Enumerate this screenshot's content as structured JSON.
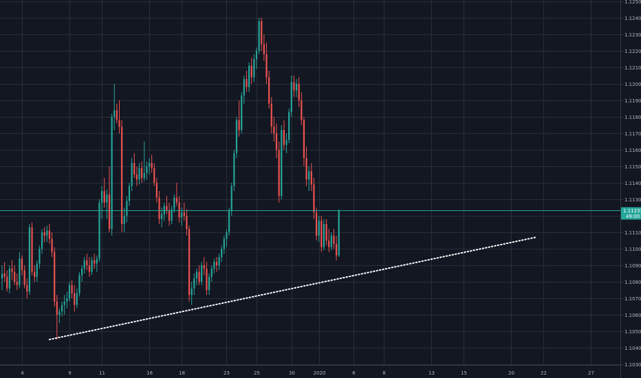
{
  "chart_data": {
    "type": "candlestick",
    "title": "",
    "xlabel": "",
    "ylabel": "",
    "ylim": [
      1.103,
      1.125
    ],
    "y_ticks": [
      "1.10300",
      "1.10400",
      "1.10500",
      "1.10600",
      "1.10700",
      "1.10800",
      "1.10900",
      "1.11000",
      "1.11100",
      "1.11200",
      "1.11300",
      "1.11400",
      "1.11500",
      "1.11600",
      "1.11700",
      "1.11800",
      "1.11900",
      "1.12000",
      "1.12100",
      "1.12200",
      "1.12300",
      "1.12400",
      "1.12500"
    ],
    "x_ticks": [
      {
        "label": "4",
        "bar": 8
      },
      {
        "label": "9",
        "bar": 27
      },
      {
        "label": "11",
        "bar": 40
      },
      {
        "label": "16",
        "bar": 59
      },
      {
        "label": "18",
        "bar": 72
      },
      {
        "label": "23",
        "bar": 90
      },
      {
        "label": "25",
        "bar": 102
      },
      {
        "label": "30",
        "bar": 116
      },
      {
        "label": "2020",
        "bar": 127
      },
      {
        "label": "6",
        "bar": 141
      },
      {
        "label": "8",
        "bar": 153
      },
      {
        "label": "13",
        "bar": 172
      },
      {
        "label": "15",
        "bar": 185
      },
      {
        "label": "20",
        "bar": 204
      },
      {
        "label": "22",
        "bar": 217
      },
      {
        "label": "27",
        "bar": 236
      }
    ],
    "x_range_bars": [
      0,
      247
    ],
    "grid": true,
    "current_price": {
      "value": 1.11233,
      "label": "1.11233",
      "timer": "49:00",
      "color": "#26a69a"
    },
    "trendline": {
      "style": "dotted",
      "color": "#ffffff",
      "start": {
        "bar": 19,
        "price": 1.1045
      },
      "end": {
        "bar": 214,
        "price": 1.1107
      }
    },
    "colors": {
      "up": "#26a69a",
      "down": "#ef5350",
      "background": "#131722",
      "grid": "#2a2e39"
    },
    "candles": [
      [
        1.1082,
        1.109,
        1.1075,
        1.1085
      ],
      [
        1.1085,
        1.1092,
        1.108,
        1.1083
      ],
      [
        1.1083,
        1.1087,
        1.1074,
        1.1076
      ],
      [
        1.1076,
        1.109,
        1.1073,
        1.1088
      ],
      [
        1.1088,
        1.1093,
        1.1081,
        1.1086
      ],
      [
        1.1086,
        1.109,
        1.1078,
        1.108
      ],
      [
        1.108,
        1.1085,
        1.1075,
        1.1078
      ],
      [
        1.1078,
        1.1098,
        1.1076,
        1.1094
      ],
      [
        1.1094,
        1.1096,
        1.1084,
        1.1087
      ],
      [
        1.1087,
        1.109,
        1.1076,
        1.1078
      ],
      [
        1.1078,
        1.1082,
        1.107,
        1.1074
      ],
      [
        1.1074,
        1.1115,
        1.1072,
        1.1113
      ],
      [
        1.1113,
        1.1116,
        1.1084,
        1.1086
      ],
      [
        1.1086,
        1.109,
        1.108,
        1.1083
      ],
      [
        1.1083,
        1.1093,
        1.108,
        1.1091
      ],
      [
        1.1091,
        1.1102,
        1.1088,
        1.11
      ],
      [
        1.11,
        1.1112,
        1.1097,
        1.111
      ],
      [
        1.111,
        1.1113,
        1.1104,
        1.1108
      ],
      [
        1.1108,
        1.1114,
        1.1104,
        1.1111
      ],
      [
        1.1111,
        1.1115,
        1.1103,
        1.1106
      ],
      [
        1.1106,
        1.111,
        1.1095,
        1.1098
      ],
      [
        1.1098,
        1.1101,
        1.1065,
        1.1068
      ],
      [
        1.1068,
        1.1072,
        1.1045,
        1.106
      ],
      [
        1.106,
        1.1064,
        1.1055,
        1.1062
      ],
      [
        1.1062,
        1.1068,
        1.1059,
        1.1066
      ],
      [
        1.1066,
        1.1072,
        1.106,
        1.1068
      ],
      [
        1.1068,
        1.1074,
        1.1064,
        1.107
      ],
      [
        1.107,
        1.108,
        1.1068,
        1.1078
      ],
      [
        1.1078,
        1.1081,
        1.107,
        1.1073
      ],
      [
        1.1073,
        1.1078,
        1.1062,
        1.1066
      ],
      [
        1.1066,
        1.1076,
        1.1064,
        1.1073
      ],
      [
        1.1073,
        1.1086,
        1.1071,
        1.1084
      ],
      [
        1.1084,
        1.109,
        1.108,
        1.1088
      ],
      [
        1.1088,
        1.1095,
        1.1085,
        1.1093
      ],
      [
        1.1093,
        1.1097,
        1.1087,
        1.109
      ],
      [
        1.109,
        1.1095,
        1.1083,
        1.1086
      ],
      [
        1.1086,
        1.1095,
        1.1084,
        1.1093
      ],
      [
        1.1093,
        1.1097,
        1.1088,
        1.1091
      ],
      [
        1.1091,
        1.1096,
        1.1086,
        1.1094
      ],
      [
        1.1094,
        1.113,
        1.1092,
        1.1128
      ],
      [
        1.1128,
        1.1138,
        1.1118,
        1.1135
      ],
      [
        1.1135,
        1.1143,
        1.1125,
        1.1128
      ],
      [
        1.1128,
        1.1136,
        1.1118,
        1.1133
      ],
      [
        1.1133,
        1.115,
        1.111,
        1.1112
      ],
      [
        1.1112,
        1.1182,
        1.1108,
        1.118
      ],
      [
        1.118,
        1.12,
        1.1172,
        1.1184
      ],
      [
        1.1184,
        1.1188,
        1.1176,
        1.1178
      ],
      [
        1.1178,
        1.119,
        1.117,
        1.1174
      ],
      [
        1.1174,
        1.1178,
        1.111,
        1.1115
      ],
      [
        1.1115,
        1.1125,
        1.111,
        1.112
      ],
      [
        1.112,
        1.1132,
        1.1116,
        1.1129
      ],
      [
        1.1129,
        1.114,
        1.1126,
        1.1138
      ],
      [
        1.1138,
        1.1155,
        1.1135,
        1.1152
      ],
      [
        1.1152,
        1.1158,
        1.1143,
        1.1145
      ],
      [
        1.1145,
        1.115,
        1.1138,
        1.1142
      ],
      [
        1.1142,
        1.1152,
        1.1139,
        1.1149
      ],
      [
        1.1149,
        1.1153,
        1.114,
        1.1143
      ],
      [
        1.1143,
        1.1165,
        1.1141,
        1.1146
      ],
      [
        1.1146,
        1.1153,
        1.1142,
        1.115
      ],
      [
        1.115,
        1.1155,
        1.1145,
        1.1152
      ],
      [
        1.1152,
        1.1157,
        1.1146,
        1.1149
      ],
      [
        1.1149,
        1.1152,
        1.1138,
        1.114
      ],
      [
        1.114,
        1.1143,
        1.1128,
        1.1131
      ],
      [
        1.1131,
        1.1135,
        1.1115,
        1.1118
      ],
      [
        1.1118,
        1.1125,
        1.1113,
        1.1121
      ],
      [
        1.1121,
        1.1128,
        1.1117,
        1.1126
      ],
      [
        1.1126,
        1.1132,
        1.1121,
        1.1123
      ],
      [
        1.1123,
        1.1128,
        1.1114,
        1.1117
      ],
      [
        1.1117,
        1.1126,
        1.1115,
        1.1124
      ],
      [
        1.1124,
        1.1133,
        1.1122,
        1.1131
      ],
      [
        1.1131,
        1.114,
        1.1126,
        1.1128
      ],
      [
        1.1128,
        1.1132,
        1.1116,
        1.1119
      ],
      [
        1.1119,
        1.1125,
        1.1114,
        1.1122
      ],
      [
        1.1122,
        1.1128,
        1.1117,
        1.112
      ],
      [
        1.112,
        1.1124,
        1.1108,
        1.1112
      ],
      [
        1.1112,
        1.1114,
        1.1068,
        1.1072
      ],
      [
        1.1072,
        1.108,
        1.1066,
        1.1076
      ],
      [
        1.1076,
        1.1085,
        1.1072,
        1.1082
      ],
      [
        1.1082,
        1.1088,
        1.1078,
        1.1086
      ],
      [
        1.1086,
        1.109,
        1.1078,
        1.108
      ],
      [
        1.108,
        1.1092,
        1.1078,
        1.109
      ],
      [
        1.109,
        1.1095,
        1.1084,
        1.1088
      ],
      [
        1.1088,
        1.1092,
        1.1072,
        1.1075
      ],
      [
        1.1075,
        1.1085,
        1.1072,
        1.1083
      ],
      [
        1.1083,
        1.109,
        1.108,
        1.1088
      ],
      [
        1.1088,
        1.1094,
        1.1085,
        1.1092
      ],
      [
        1.1092,
        1.1095,
        1.1086,
        1.109
      ],
      [
        1.109,
        1.1097,
        1.1087,
        1.1095
      ],
      [
        1.1095,
        1.1102,
        1.1092,
        1.11
      ],
      [
        1.11,
        1.1108,
        1.1097,
        1.1106
      ],
      [
        1.1106,
        1.1112,
        1.1101,
        1.111
      ],
      [
        1.111,
        1.1125,
        1.1108,
        1.1123
      ],
      [
        1.1123,
        1.114,
        1.112,
        1.1138
      ],
      [
        1.1138,
        1.116,
        1.1135,
        1.1158
      ],
      [
        1.1158,
        1.118,
        1.1155,
        1.1178
      ],
      [
        1.1178,
        1.119,
        1.1168,
        1.1172
      ],
      [
        1.1172,
        1.1195,
        1.117,
        1.1193
      ],
      [
        1.1193,
        1.1205,
        1.1188,
        1.1203
      ],
      [
        1.1203,
        1.1208,
        1.1195,
        1.1198
      ],
      [
        1.1198,
        1.1213,
        1.1195,
        1.1211
      ],
      [
        1.1211,
        1.1216,
        1.12,
        1.1204
      ],
      [
        1.1204,
        1.1218,
        1.1201,
        1.1215
      ],
      [
        1.1215,
        1.1222,
        1.1209,
        1.122
      ],
      [
        1.122,
        1.124,
        1.1218,
        1.1238
      ],
      [
        1.1238,
        1.124,
        1.122,
        1.1224
      ],
      [
        1.1224,
        1.123,
        1.1214,
        1.1218
      ],
      [
        1.1218,
        1.1225,
        1.12,
        1.1204
      ],
      [
        1.1204,
        1.1208,
        1.1185,
        1.1188
      ],
      [
        1.1188,
        1.1192,
        1.117,
        1.1174
      ],
      [
        1.1174,
        1.118,
        1.1165,
        1.117
      ],
      [
        1.117,
        1.1176,
        1.1155,
        1.116
      ],
      [
        1.116,
        1.1165,
        1.1128,
        1.1132
      ],
      [
        1.1132,
        1.1175,
        1.113,
        1.1172
      ],
      [
        1.1172,
        1.1178,
        1.116,
        1.1163
      ],
      [
        1.1163,
        1.117,
        1.1158,
        1.1166
      ],
      [
        1.1166,
        1.1185,
        1.1164,
        1.1183
      ],
      [
        1.1183,
        1.1205,
        1.118,
        1.1201
      ],
      [
        1.1201,
        1.1205,
        1.1192,
        1.1196
      ],
      [
        1.1196,
        1.1203,
        1.1192,
        1.12
      ],
      [
        1.12,
        1.1204,
        1.1186,
        1.119
      ],
      [
        1.119,
        1.1195,
        1.1175,
        1.1178
      ],
      [
        1.1178,
        1.118,
        1.115,
        1.1155
      ],
      [
        1.1155,
        1.1162,
        1.1138,
        1.1142
      ],
      [
        1.1142,
        1.115,
        1.1135,
        1.1147
      ],
      [
        1.1147,
        1.1152,
        1.1135,
        1.1139
      ],
      [
        1.1139,
        1.1143,
        1.1118,
        1.1122
      ],
      [
        1.1122,
        1.1125,
        1.1105,
        1.1108
      ],
      [
        1.1108,
        1.112,
        1.1104,
        1.1117
      ],
      [
        1.1117,
        1.112,
        1.1098,
        1.1101
      ],
      [
        1.1101,
        1.1118,
        1.1099,
        1.1115
      ],
      [
        1.1115,
        1.1118,
        1.1102,
        1.1105
      ],
      [
        1.1105,
        1.1112,
        1.1098,
        1.1101
      ],
      [
        1.1101,
        1.111,
        1.1099,
        1.1108
      ],
      [
        1.1108,
        1.1112,
        1.11,
        1.1103
      ],
      [
        1.1103,
        1.1108,
        1.1093,
        1.1096
      ],
      [
        1.1096,
        1.1124,
        1.1095,
        1.1123
      ]
    ]
  }
}
